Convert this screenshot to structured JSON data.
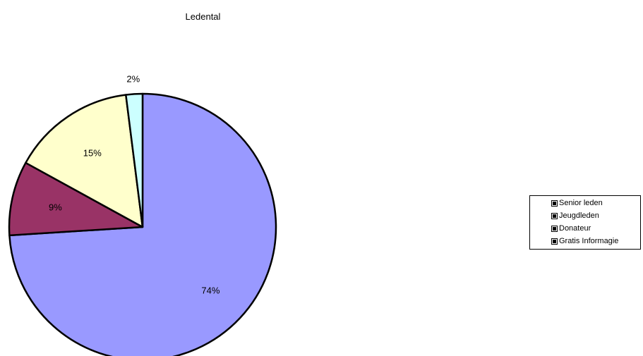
{
  "chart_data": {
    "type": "pie",
    "title": "Ledental",
    "categories": [
      "Senior leden",
      "Jeugdleden",
      "Donateur",
      "Gratis Informagie"
    ],
    "values": [
      74,
      9,
      15,
      2
    ],
    "data_labels": [
      "74%",
      "9%",
      "15%",
      "2%"
    ],
    "colors": [
      "#9999ff",
      "#993366",
      "#ffffcc",
      "#ccffff"
    ],
    "legend_position": "right"
  }
}
